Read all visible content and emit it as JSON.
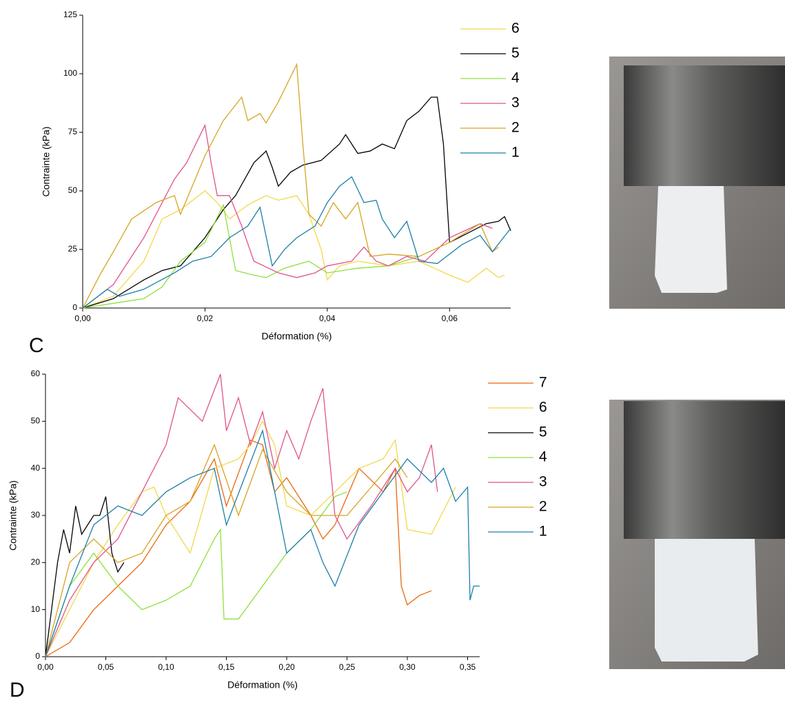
{
  "chart_data": [
    {
      "panel": "C",
      "type": "line",
      "xlabel": "Déformation (%)",
      "ylabel": "Contrainte (kPa)",
      "xlim": [
        0,
        0.07
      ],
      "ylim": [
        0,
        125
      ],
      "xticks": [
        {
          "value": 0,
          "label": "0,00"
        },
        {
          "value": 0.02,
          "label": "0,02"
        },
        {
          "value": 0.04,
          "label": "0,04"
        },
        {
          "value": 0.06,
          "label": "0,06"
        }
      ],
      "yticks": [
        0,
        25,
        50,
        75,
        100,
        125
      ],
      "series": [
        {
          "name": "6",
          "color": "#f2d84a",
          "x": [
            0,
            0.005,
            0.01,
            0.013,
            0.016,
            0.02,
            0.022,
            0.024,
            0.027,
            0.03,
            0.032,
            0.035,
            0.037,
            0.039,
            0.04,
            0.042,
            0.045,
            0.05,
            0.055,
            0.06,
            0.063,
            0.066,
            0.068,
            0.069
          ],
          "values": [
            0,
            5,
            20,
            38,
            42,
            50,
            45,
            38,
            44,
            48,
            46,
            48,
            40,
            25,
            12,
            18,
            20,
            18,
            20,
            14,
            11,
            17,
            13,
            14
          ]
        },
        {
          "name": "5",
          "color": "#000000",
          "x": [
            0,
            0.005,
            0.01,
            0.013,
            0.016,
            0.02,
            0.023,
            0.025,
            0.028,
            0.03,
            0.031,
            0.032,
            0.034,
            0.036,
            0.039,
            0.042,
            0.043,
            0.045,
            0.047,
            0.049,
            0.051,
            0.053,
            0.055,
            0.057,
            0.058,
            0.059,
            0.06,
            0.063,
            0.066,
            0.068,
            0.069,
            0.07
          ],
          "values": [
            0,
            4,
            12,
            16,
            18,
            30,
            42,
            48,
            62,
            67,
            60,
            52,
            58,
            61,
            63,
            70,
            74,
            66,
            67,
            70,
            68,
            80,
            84,
            90,
            90,
            70,
            28,
            32,
            36,
            37,
            39,
            33
          ]
        },
        {
          "name": "4",
          "color": "#8ee03c",
          "x": [
            0,
            0.005,
            0.01,
            0.013,
            0.016,
            0.02,
            0.023,
            0.024,
            0.025,
            0.028,
            0.03,
            0.033,
            0.037,
            0.04,
            0.045,
            0.05,
            0.055
          ],
          "values": [
            0,
            2,
            4,
            9,
            20,
            28,
            44,
            30,
            16,
            14,
            13,
            17,
            20,
            15,
            17,
            18,
            22
          ]
        },
        {
          "name": "3",
          "color": "#e0528c",
          "x": [
            0,
            0.005,
            0.01,
            0.015,
            0.017,
            0.02,
            0.021,
            0.022,
            0.024,
            0.026,
            0.028,
            0.032,
            0.035,
            0.038,
            0.04,
            0.044,
            0.046,
            0.048,
            0.05,
            0.053,
            0.056,
            0.06,
            0.065,
            0.067
          ],
          "values": [
            0,
            10,
            30,
            55,
            62,
            78,
            62,
            48,
            48,
            35,
            20,
            15,
            13,
            15,
            18,
            20,
            26,
            20,
            18,
            22,
            20,
            30,
            36,
            34
          ]
        },
        {
          "name": "2",
          "color": "#d6a422",
          "x": [
            0,
            0.003,
            0.005,
            0.008,
            0.012,
            0.015,
            0.016,
            0.02,
            0.023,
            0.026,
            0.027,
            0.029,
            0.03,
            0.032,
            0.035,
            0.036,
            0.037,
            0.039,
            0.041,
            0.043,
            0.045,
            0.047,
            0.05,
            0.055,
            0.06,
            0.065,
            0.067,
            0.068
          ],
          "values": [
            0,
            15,
            24,
            38,
            45,
            48,
            40,
            65,
            80,
            90,
            80,
            83,
            79,
            88,
            104,
            70,
            40,
            35,
            45,
            38,
            45,
            22,
            23,
            22,
            28,
            36,
            24,
            26
          ]
        },
        {
          "name": "1",
          "color": "#1a7fa8",
          "x": [
            0,
            0.004,
            0.006,
            0.01,
            0.015,
            0.018,
            0.021,
            0.024,
            0.027,
            0.029,
            0.031,
            0.033,
            0.035,
            0.038,
            0.04,
            0.042,
            0.044,
            0.046,
            0.048,
            0.049,
            0.051,
            0.053,
            0.055,
            0.058,
            0.062,
            0.065,
            0.067,
            0.07
          ],
          "values": [
            0,
            8,
            5,
            8,
            15,
            20,
            22,
            30,
            35,
            43,
            18,
            25,
            30,
            35,
            45,
            52,
            56,
            45,
            46,
            38,
            30,
            37,
            20,
            19,
            27,
            31,
            24,
            34
          ]
        }
      ]
    },
    {
      "panel": "D",
      "type": "line",
      "xlabel": "Déformation (%)",
      "ylabel": "Contrainte (kPa)",
      "xlim": [
        0,
        0.36
      ],
      "ylim": [
        0,
        60
      ],
      "xticks": [
        {
          "value": 0,
          "label": "0,00"
        },
        {
          "value": 0.05,
          "label": "0,05"
        },
        {
          "value": 0.1,
          "label": "0,10"
        },
        {
          "value": 0.15,
          "label": "0,15"
        },
        {
          "value": 0.2,
          "label": "0,20"
        },
        {
          "value": 0.25,
          "label": "0,25"
        },
        {
          "value": 0.3,
          "label": "0,30"
        },
        {
          "value": 0.35,
          "label": "0,35"
        }
      ],
      "yticks": [
        0,
        10,
        20,
        30,
        40,
        50,
        60
      ],
      "series": [
        {
          "name": "7",
          "color": "#e8680e",
          "x": [
            0,
            0.02,
            0.04,
            0.06,
            0.08,
            0.1,
            0.12,
            0.14,
            0.15,
            0.17,
            0.18,
            0.19,
            0.2,
            0.22,
            0.23,
            0.24,
            0.26,
            0.28,
            0.29,
            0.295,
            0.3,
            0.31,
            0.32
          ],
          "values": [
            0,
            3,
            10,
            15,
            20,
            28,
            33,
            42,
            32,
            46,
            45,
            35,
            38,
            30,
            25,
            28,
            40,
            35,
            40,
            15,
            11,
            13,
            14
          ]
        },
        {
          "name": "6",
          "color": "#f2d84a",
          "x": [
            0,
            0.02,
            0.04,
            0.06,
            0.08,
            0.09,
            0.1,
            0.12,
            0.14,
            0.16,
            0.17,
            0.18,
            0.19,
            0.2,
            0.22,
            0.24,
            0.26,
            0.28,
            0.29,
            0.3,
            0.32,
            0.34
          ],
          "values": [
            0,
            10,
            20,
            28,
            35,
            36,
            30,
            22,
            40,
            42,
            45,
            50,
            45,
            32,
            30,
            35,
            40,
            42,
            46,
            27,
            26,
            36
          ]
        },
        {
          "name": "5",
          "color": "#000000",
          "x": [
            0,
            0.005,
            0.01,
            0.015,
            0.02,
            0.025,
            0.03,
            0.04,
            0.045,
            0.05,
            0.055,
            0.06,
            0.065
          ],
          "values": [
            0,
            10,
            20,
            27,
            22,
            32,
            26,
            30,
            30,
            34,
            22,
            18,
            20
          ]
        },
        {
          "name": "4",
          "color": "#8ee03c",
          "x": [
            0,
            0.02,
            0.04,
            0.06,
            0.08,
            0.1,
            0.12,
            0.14,
            0.145,
            0.148,
            0.16,
            0.18,
            0.2,
            0.22,
            0.24,
            0.25
          ],
          "values": [
            0,
            15,
            22,
            15,
            10,
            12,
            15,
            25,
            27,
            8,
            8,
            15,
            22,
            27,
            34,
            35
          ]
        },
        {
          "name": "3",
          "color": "#e0528c",
          "x": [
            0,
            0.02,
            0.04,
            0.06,
            0.08,
            0.1,
            0.11,
            0.13,
            0.145,
            0.15,
            0.16,
            0.17,
            0.18,
            0.19,
            0.2,
            0.21,
            0.22,
            0.23,
            0.24,
            0.25,
            0.27,
            0.29,
            0.3,
            0.31,
            0.32,
            0.325
          ],
          "values": [
            0,
            12,
            20,
            25,
            35,
            45,
            55,
            50,
            60,
            48,
            55,
            45,
            52,
            40,
            48,
            42,
            50,
            57,
            30,
            25,
            32,
            40,
            35,
            38,
            45,
            35
          ]
        },
        {
          "name": "2",
          "color": "#d6a422",
          "x": [
            0,
            0.02,
            0.04,
            0.06,
            0.08,
            0.1,
            0.12,
            0.14,
            0.16,
            0.18,
            0.2,
            0.22,
            0.25,
            0.27,
            0.29,
            0.3
          ],
          "values": [
            0,
            20,
            25,
            20,
            22,
            30,
            33,
            45,
            30,
            44,
            35,
            30,
            30,
            36,
            42,
            38
          ]
        },
        {
          "name": "1",
          "color": "#1a7fa8",
          "x": [
            0,
            0.02,
            0.04,
            0.06,
            0.08,
            0.1,
            0.12,
            0.14,
            0.15,
            0.18,
            0.19,
            0.2,
            0.22,
            0.23,
            0.24,
            0.26,
            0.28,
            0.3,
            0.32,
            0.33,
            0.34,
            0.35,
            0.352,
            0.355,
            0.36
          ],
          "values": [
            0,
            15,
            28,
            32,
            30,
            35,
            38,
            40,
            28,
            48,
            35,
            22,
            27,
            20,
            15,
            28,
            35,
            42,
            37,
            40,
            33,
            36,
            12,
            15,
            15
          ]
        }
      ]
    }
  ]
}
